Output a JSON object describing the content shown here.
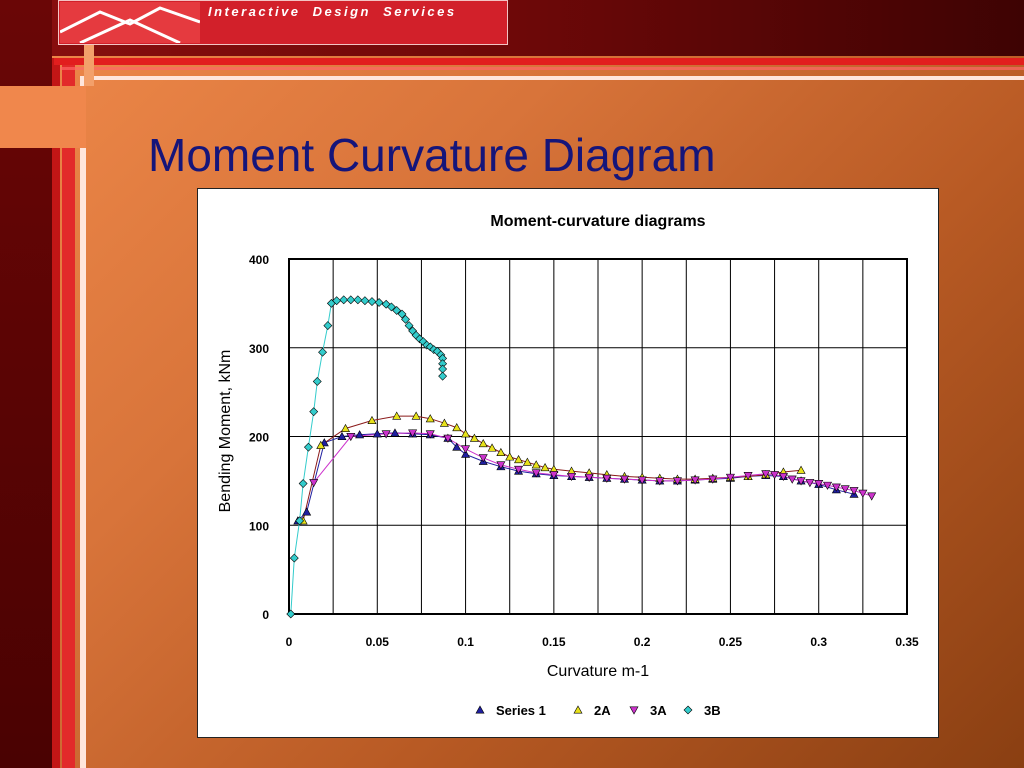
{
  "header": {
    "logo_text": "Interactive   Design   Services"
  },
  "slide": {
    "title": "Moment Curvature Diagram"
  },
  "colors": {
    "series1": "#1f1fa0",
    "series2A": "#e8e21a",
    "series2A_line": "#8b1a1a",
    "series3A": "#cc33cc",
    "series3B": "#33cccc",
    "title_text": "#15157a"
  },
  "chart_data": {
    "type": "scatter",
    "title": "Moment-curvature diagrams",
    "xlabel": "Curvature m-1",
    "ylabel": "Bending Moment, kNm",
    "xlim": [
      0,
      0.35
    ],
    "ylim": [
      0,
      400
    ],
    "x_ticks": [
      "0",
      "0.05",
      "0.1",
      "0.15",
      "0.2",
      "0.25",
      "0.3",
      "0.35"
    ],
    "y_ticks": [
      "0",
      "100",
      "200",
      "300",
      "400"
    ],
    "grid": true,
    "legend_position": "bottom",
    "series": [
      {
        "name": "Series 1",
        "marker": "triangle-up",
        "color": "#1f1fa0",
        "x": [
          0.005,
          0.01,
          0.02,
          0.03,
          0.04,
          0.05,
          0.06,
          0.07,
          0.08,
          0.09,
          0.095,
          0.1,
          0.11,
          0.12,
          0.13,
          0.14,
          0.15,
          0.16,
          0.17,
          0.18,
          0.19,
          0.2,
          0.21,
          0.22,
          0.23,
          0.24,
          0.25,
          0.26,
          0.27,
          0.28,
          0.29,
          0.3,
          0.31,
          0.32
        ],
        "y": [
          105,
          115,
          193,
          200,
          202,
          203,
          204,
          203,
          202,
          198,
          188,
          180,
          172,
          166,
          161,
          158,
          156,
          155,
          154,
          153,
          152,
          151,
          150,
          150,
          151,
          152,
          153,
          155,
          156,
          155,
          150,
          146,
          140,
          135
        ]
      },
      {
        "name": "2A",
        "marker": "triangle-up",
        "color": "#e8e21a",
        "x": [
          0.008,
          0.018,
          0.032,
          0.047,
          0.061,
          0.072,
          0.08,
          0.088,
          0.095,
          0.1,
          0.105,
          0.11,
          0.115,
          0.12,
          0.125,
          0.13,
          0.135,
          0.14,
          0.145,
          0.15,
          0.16,
          0.17,
          0.18,
          0.19,
          0.2,
          0.21,
          0.22,
          0.23,
          0.24,
          0.25,
          0.26,
          0.27,
          0.28,
          0.29
        ],
        "y": [
          105,
          190,
          209,
          218,
          223,
          223,
          220,
          215,
          210,
          203,
          198,
          192,
          187,
          182,
          177,
          174,
          171,
          168,
          165,
          163,
          161,
          159,
          157,
          155,
          154,
          153,
          152,
          152,
          153,
          154,
          155,
          157,
          160,
          162
        ]
      },
      {
        "name": "3A",
        "marker": "triangle-down",
        "color": "#cc33cc",
        "x": [
          0.014,
          0.035,
          0.055,
          0.07,
          0.08,
          0.09,
          0.1,
          0.11,
          0.12,
          0.13,
          0.14,
          0.15,
          0.16,
          0.17,
          0.18,
          0.19,
          0.2,
          0.21,
          0.22,
          0.23,
          0.24,
          0.25,
          0.26,
          0.27,
          0.275,
          0.28,
          0.285,
          0.29,
          0.295,
          0.3,
          0.305,
          0.31,
          0.315,
          0.32,
          0.325,
          0.33
        ],
        "y": [
          148,
          200,
          203,
          204,
          203,
          198,
          186,
          176,
          168,
          163,
          159,
          157,
          155,
          154,
          153,
          152,
          151,
          150,
          150,
          151,
          152,
          154,
          156,
          158,
          157,
          155,
          152,
          150,
          148,
          147,
          145,
          143,
          141,
          139,
          136,
          133
        ]
      },
      {
        "name": "3B",
        "marker": "diamond",
        "color": "#33cccc",
        "x": [
          0.001,
          0.003,
          0.006,
          0.008,
          0.011,
          0.014,
          0.016,
          0.019,
          0.022,
          0.024,
          0.027,
          0.031,
          0.035,
          0.039,
          0.043,
          0.047,
          0.051,
          0.055,
          0.058,
          0.061,
          0.064,
          0.066,
          0.068,
          0.07,
          0.072,
          0.074,
          0.076,
          0.078,
          0.08,
          0.082,
          0.084,
          0.086,
          0.087,
          0.087,
          0.087,
          0.087
        ],
        "y": [
          0,
          63,
          105,
          147,
          188,
          228,
          262,
          295,
          325,
          350,
          353,
          354,
          354,
          354,
          353,
          352,
          351,
          349,
          346,
          342,
          338,
          332,
          325,
          319,
          314,
          310,
          307,
          303,
          301,
          298,
          296,
          292,
          288,
          282,
          276,
          268
        ]
      }
    ]
  }
}
